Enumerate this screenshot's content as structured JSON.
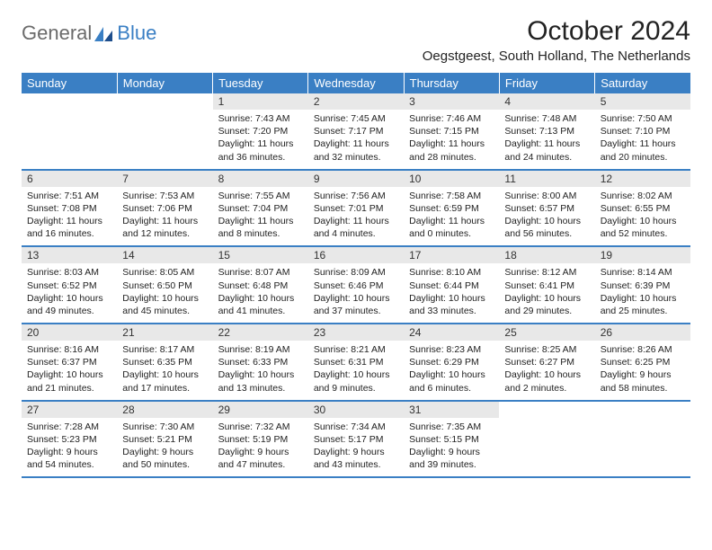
{
  "brand": {
    "general": "General",
    "blue": "Blue"
  },
  "title": "October 2024",
  "location": "Oegstgeest, South Holland, The Netherlands",
  "colors": {
    "header_bg": "#3a7fc4",
    "header_text": "#ffffff",
    "daynum_bg": "#e8e8e8",
    "text": "#222222",
    "logo_gray": "#6b6b6b",
    "logo_blue": "#3a7fc4",
    "border": "#3a7fc4"
  },
  "weekdays": [
    "Sunday",
    "Monday",
    "Tuesday",
    "Wednesday",
    "Thursday",
    "Friday",
    "Saturday"
  ],
  "weeks": [
    [
      {
        "blank": true
      },
      {
        "blank": true
      },
      {
        "day": "1",
        "sunrise": "Sunrise: 7:43 AM",
        "sunset": "Sunset: 7:20 PM",
        "daylight": "Daylight: 11 hours and 36 minutes."
      },
      {
        "day": "2",
        "sunrise": "Sunrise: 7:45 AM",
        "sunset": "Sunset: 7:17 PM",
        "daylight": "Daylight: 11 hours and 32 minutes."
      },
      {
        "day": "3",
        "sunrise": "Sunrise: 7:46 AM",
        "sunset": "Sunset: 7:15 PM",
        "daylight": "Daylight: 11 hours and 28 minutes."
      },
      {
        "day": "4",
        "sunrise": "Sunrise: 7:48 AM",
        "sunset": "Sunset: 7:13 PM",
        "daylight": "Daylight: 11 hours and 24 minutes."
      },
      {
        "day": "5",
        "sunrise": "Sunrise: 7:50 AM",
        "sunset": "Sunset: 7:10 PM",
        "daylight": "Daylight: 11 hours and 20 minutes."
      }
    ],
    [
      {
        "day": "6",
        "sunrise": "Sunrise: 7:51 AM",
        "sunset": "Sunset: 7:08 PM",
        "daylight": "Daylight: 11 hours and 16 minutes."
      },
      {
        "day": "7",
        "sunrise": "Sunrise: 7:53 AM",
        "sunset": "Sunset: 7:06 PM",
        "daylight": "Daylight: 11 hours and 12 minutes."
      },
      {
        "day": "8",
        "sunrise": "Sunrise: 7:55 AM",
        "sunset": "Sunset: 7:04 PM",
        "daylight": "Daylight: 11 hours and 8 minutes."
      },
      {
        "day": "9",
        "sunrise": "Sunrise: 7:56 AM",
        "sunset": "Sunset: 7:01 PM",
        "daylight": "Daylight: 11 hours and 4 minutes."
      },
      {
        "day": "10",
        "sunrise": "Sunrise: 7:58 AM",
        "sunset": "Sunset: 6:59 PM",
        "daylight": "Daylight: 11 hours and 0 minutes."
      },
      {
        "day": "11",
        "sunrise": "Sunrise: 8:00 AM",
        "sunset": "Sunset: 6:57 PM",
        "daylight": "Daylight: 10 hours and 56 minutes."
      },
      {
        "day": "12",
        "sunrise": "Sunrise: 8:02 AM",
        "sunset": "Sunset: 6:55 PM",
        "daylight": "Daylight: 10 hours and 52 minutes."
      }
    ],
    [
      {
        "day": "13",
        "sunrise": "Sunrise: 8:03 AM",
        "sunset": "Sunset: 6:52 PM",
        "daylight": "Daylight: 10 hours and 49 minutes."
      },
      {
        "day": "14",
        "sunrise": "Sunrise: 8:05 AM",
        "sunset": "Sunset: 6:50 PM",
        "daylight": "Daylight: 10 hours and 45 minutes."
      },
      {
        "day": "15",
        "sunrise": "Sunrise: 8:07 AM",
        "sunset": "Sunset: 6:48 PM",
        "daylight": "Daylight: 10 hours and 41 minutes."
      },
      {
        "day": "16",
        "sunrise": "Sunrise: 8:09 AM",
        "sunset": "Sunset: 6:46 PM",
        "daylight": "Daylight: 10 hours and 37 minutes."
      },
      {
        "day": "17",
        "sunrise": "Sunrise: 8:10 AM",
        "sunset": "Sunset: 6:44 PM",
        "daylight": "Daylight: 10 hours and 33 minutes."
      },
      {
        "day": "18",
        "sunrise": "Sunrise: 8:12 AM",
        "sunset": "Sunset: 6:41 PM",
        "daylight": "Daylight: 10 hours and 29 minutes."
      },
      {
        "day": "19",
        "sunrise": "Sunrise: 8:14 AM",
        "sunset": "Sunset: 6:39 PM",
        "daylight": "Daylight: 10 hours and 25 minutes."
      }
    ],
    [
      {
        "day": "20",
        "sunrise": "Sunrise: 8:16 AM",
        "sunset": "Sunset: 6:37 PM",
        "daylight": "Daylight: 10 hours and 21 minutes."
      },
      {
        "day": "21",
        "sunrise": "Sunrise: 8:17 AM",
        "sunset": "Sunset: 6:35 PM",
        "daylight": "Daylight: 10 hours and 17 minutes."
      },
      {
        "day": "22",
        "sunrise": "Sunrise: 8:19 AM",
        "sunset": "Sunset: 6:33 PM",
        "daylight": "Daylight: 10 hours and 13 minutes."
      },
      {
        "day": "23",
        "sunrise": "Sunrise: 8:21 AM",
        "sunset": "Sunset: 6:31 PM",
        "daylight": "Daylight: 10 hours and 9 minutes."
      },
      {
        "day": "24",
        "sunrise": "Sunrise: 8:23 AM",
        "sunset": "Sunset: 6:29 PM",
        "daylight": "Daylight: 10 hours and 6 minutes."
      },
      {
        "day": "25",
        "sunrise": "Sunrise: 8:25 AM",
        "sunset": "Sunset: 6:27 PM",
        "daylight": "Daylight: 10 hours and 2 minutes."
      },
      {
        "day": "26",
        "sunrise": "Sunrise: 8:26 AM",
        "sunset": "Sunset: 6:25 PM",
        "daylight": "Daylight: 9 hours and 58 minutes."
      }
    ],
    [
      {
        "day": "27",
        "sunrise": "Sunrise: 7:28 AM",
        "sunset": "Sunset: 5:23 PM",
        "daylight": "Daylight: 9 hours and 54 minutes."
      },
      {
        "day": "28",
        "sunrise": "Sunrise: 7:30 AM",
        "sunset": "Sunset: 5:21 PM",
        "daylight": "Daylight: 9 hours and 50 minutes."
      },
      {
        "day": "29",
        "sunrise": "Sunrise: 7:32 AM",
        "sunset": "Sunset: 5:19 PM",
        "daylight": "Daylight: 9 hours and 47 minutes."
      },
      {
        "day": "30",
        "sunrise": "Sunrise: 7:34 AM",
        "sunset": "Sunset: 5:17 PM",
        "daylight": "Daylight: 9 hours and 43 minutes."
      },
      {
        "day": "31",
        "sunrise": "Sunrise: 7:35 AM",
        "sunset": "Sunset: 5:15 PM",
        "daylight": "Daylight: 9 hours and 39 minutes."
      },
      {
        "blank": true
      },
      {
        "blank": true
      }
    ]
  ]
}
